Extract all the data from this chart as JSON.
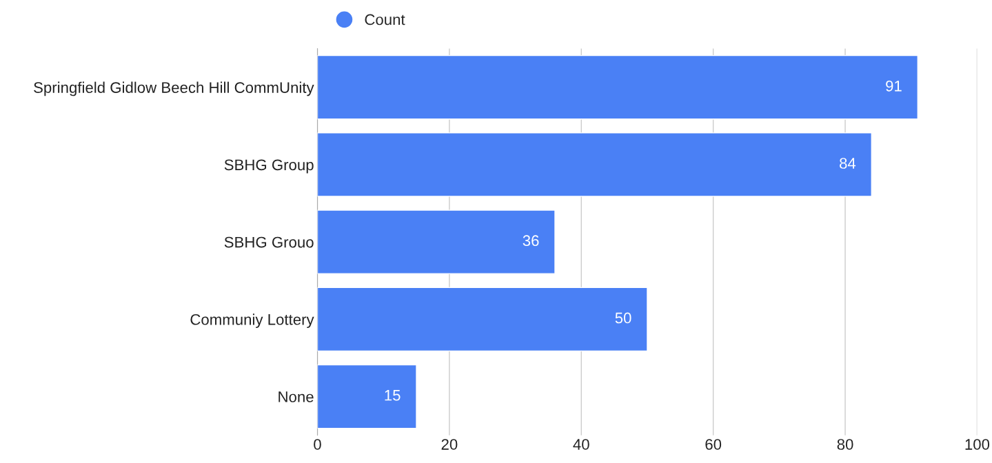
{
  "chart_data": {
    "type": "bar",
    "orientation": "horizontal",
    "categories": [
      "Springfield Gidlow Beech Hill CommUnity",
      "SBHG Group",
      "SBHG Grouo",
      "Communiy Lottery",
      "None"
    ],
    "series": [
      {
        "name": "Count",
        "color": "#4a80f5",
        "values": [
          91,
          84,
          36,
          50,
          15
        ]
      }
    ],
    "xlim": [
      0,
      100
    ],
    "xticks": [
      0,
      20,
      40,
      60,
      80,
      100
    ],
    "grid": "x",
    "legend": "top",
    "data_labels": true
  }
}
